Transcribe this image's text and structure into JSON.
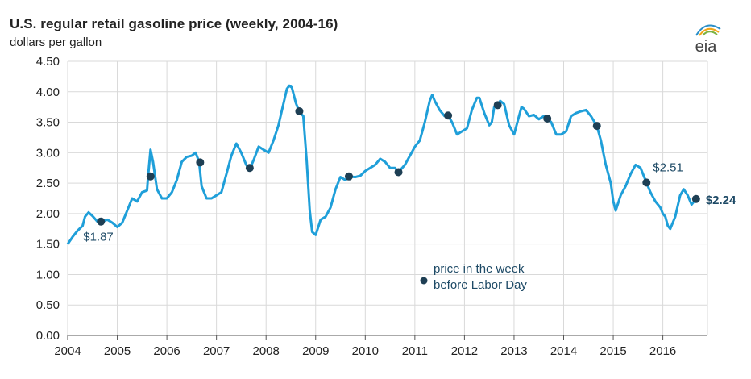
{
  "title": "U.S. regular retail gasoline price (weekly, 2004-16)",
  "subtitle": "dollars per gallon",
  "logo_text": "eia",
  "colors": {
    "line": "#1f9fd9",
    "marker": "#1e3f54",
    "grid": "#d9d9d9",
    "annotation": "#1e4a66"
  },
  "chart_data": {
    "type": "line",
    "title": "U.S. regular retail gasoline price (weekly, 2004-16)",
    "ylabel": "dollars per gallon",
    "xlim": [
      2004.0,
      2016.9
    ],
    "ylim": [
      0,
      4.5
    ],
    "y_ticks": [
      "0.00",
      "0.50",
      "1.00",
      "1.50",
      "2.00",
      "2.50",
      "3.00",
      "3.50",
      "4.00",
      "4.50"
    ],
    "x_ticks": [
      "2004",
      "2005",
      "2006",
      "2007",
      "2008",
      "2009",
      "2010",
      "2011",
      "2012",
      "2013",
      "2014",
      "2015",
      "2016"
    ],
    "grid": true,
    "series": [
      {
        "role": "weekly price",
        "x": [
          2004.0,
          2004.1,
          2004.2,
          2004.3,
          2004.35,
          2004.42,
          2004.5,
          2004.6,
          2004.7,
          2004.8,
          2004.9,
          2005.0,
          2005.1,
          2005.2,
          2005.3,
          2005.4,
          2005.5,
          2005.6,
          2005.62,
          2005.67,
          2005.72,
          2005.8,
          2005.9,
          2006.0,
          2006.1,
          2006.2,
          2006.3,
          2006.4,
          2006.5,
          2006.58,
          2006.65,
          2006.7,
          2006.8,
          2006.9,
          2007.0,
          2007.1,
          2007.2,
          2007.3,
          2007.4,
          2007.5,
          2007.6,
          2007.67,
          2007.75,
          2007.85,
          2007.95,
          2008.05,
          2008.15,
          2008.25,
          2008.35,
          2008.42,
          2008.47,
          2008.52,
          2008.6,
          2008.67,
          2008.75,
          2008.82,
          2008.88,
          2008.93,
          2009.0,
          2009.1,
          2009.2,
          2009.3,
          2009.4,
          2009.5,
          2009.6,
          2009.67,
          2009.8,
          2009.9,
          2010.0,
          2010.1,
          2010.2,
          2010.3,
          2010.4,
          2010.5,
          2010.6,
          2010.67,
          2010.8,
          2010.9,
          2011.0,
          2011.1,
          2011.2,
          2011.3,
          2011.35,
          2011.4,
          2011.5,
          2011.6,
          2011.67,
          2011.75,
          2011.85,
          2011.95,
          2012.05,
          2012.15,
          2012.25,
          2012.3,
          2012.4,
          2012.5,
          2012.55,
          2012.6,
          2012.67,
          2012.72,
          2012.8,
          2012.9,
          2013.0,
          2013.1,
          2013.15,
          2013.2,
          2013.3,
          2013.4,
          2013.5,
          2013.6,
          2013.67,
          2013.75,
          2013.85,
          2013.95,
          2014.05,
          2014.15,
          2014.25,
          2014.35,
          2014.45,
          2014.55,
          2014.67,
          2014.75,
          2014.85,
          2014.95,
          2015.0,
          2015.05,
          2015.15,
          2015.25,
          2015.35,
          2015.45,
          2015.55,
          2015.67,
          2015.75,
          2015.85,
          2015.95,
          2016.0,
          2016.05,
          2016.1,
          2016.15,
          2016.25,
          2016.35,
          2016.42,
          2016.5,
          2016.58,
          2016.67
        ],
        "y": [
          1.5,
          1.62,
          1.72,
          1.8,
          1.95,
          2.02,
          1.96,
          1.87,
          1.87,
          1.9,
          1.85,
          1.78,
          1.85,
          2.05,
          2.25,
          2.2,
          2.35,
          2.38,
          2.6,
          3.05,
          2.85,
          2.4,
          2.25,
          2.25,
          2.35,
          2.55,
          2.85,
          2.93,
          2.95,
          3.0,
          2.85,
          2.45,
          2.25,
          2.25,
          2.3,
          2.35,
          2.65,
          2.95,
          3.15,
          3.0,
          2.8,
          2.73,
          2.88,
          3.1,
          3.05,
          3.0,
          3.2,
          3.45,
          3.8,
          4.05,
          4.1,
          4.07,
          3.82,
          3.67,
          3.6,
          2.85,
          2.05,
          1.7,
          1.65,
          1.9,
          1.95,
          2.1,
          2.4,
          2.6,
          2.55,
          2.61,
          2.6,
          2.62,
          2.7,
          2.75,
          2.8,
          2.9,
          2.85,
          2.75,
          2.75,
          2.68,
          2.8,
          2.95,
          3.1,
          3.2,
          3.5,
          3.85,
          3.95,
          3.85,
          3.7,
          3.6,
          3.61,
          3.5,
          3.3,
          3.35,
          3.4,
          3.7,
          3.9,
          3.9,
          3.65,
          3.45,
          3.5,
          3.75,
          3.78,
          3.85,
          3.8,
          3.45,
          3.3,
          3.6,
          3.75,
          3.72,
          3.6,
          3.62,
          3.55,
          3.6,
          3.56,
          3.5,
          3.3,
          3.3,
          3.35,
          3.6,
          3.65,
          3.68,
          3.7,
          3.6,
          3.44,
          3.2,
          2.8,
          2.5,
          2.2,
          2.05,
          2.3,
          2.45,
          2.65,
          2.8,
          2.75,
          2.51,
          2.35,
          2.2,
          2.1,
          2.0,
          1.95,
          1.8,
          1.75,
          1.95,
          2.3,
          2.4,
          2.3,
          2.15,
          2.24
        ]
      },
      {
        "name": "price in the week before Labor Day",
        "type": "scatter",
        "x": [
          2004.67,
          2005.67,
          2006.67,
          2007.67,
          2008.67,
          2009.67,
          2010.67,
          2011.67,
          2012.67,
          2013.67,
          2014.67,
          2015.67,
          2016.67
        ],
        "y": [
          1.87,
          2.61,
          2.84,
          2.75,
          3.68,
          2.61,
          2.68,
          3.61,
          3.78,
          3.56,
          3.44,
          2.51,
          2.24
        ]
      }
    ],
    "annotations": [
      {
        "text": "$1.87",
        "x": 2004.67,
        "y": 1.87,
        "bold": false
      },
      {
        "text": "$2.51",
        "x": 2015.67,
        "y": 2.51,
        "bold": false
      },
      {
        "text": "$2.24",
        "x": 2016.67,
        "y": 2.24,
        "bold": true
      }
    ],
    "legend": {
      "placement": "inside center",
      "label": "price in the week before Labor Day",
      "lines": [
        "price in the week",
        "before Labor Day"
      ]
    }
  }
}
